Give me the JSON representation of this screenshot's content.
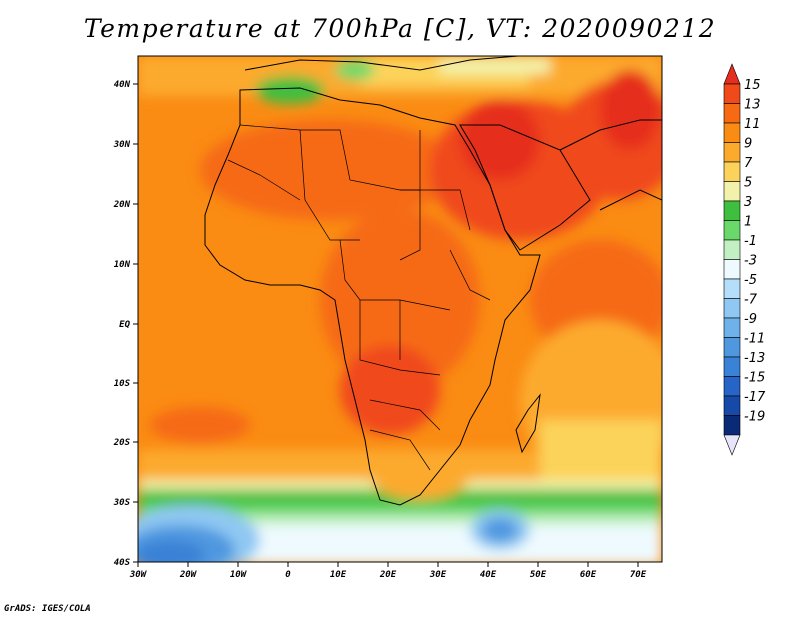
{
  "title": "Temperature at 700hPa [C], VT: 2020090212",
  "credit": "GrADS: IGES/COLA",
  "lat_labels": [
    "40N",
    "30N",
    "20N",
    "10N",
    "EQ",
    "10S",
    "20S",
    "30S",
    "40S"
  ],
  "lon_labels": [
    "30W",
    "20W",
    "10W",
    "0",
    "10E",
    "20E",
    "30E",
    "40E",
    "50E",
    "60E",
    "70E"
  ],
  "colorbar": {
    "labels": [
      "15",
      "13",
      "11",
      "9",
      "7",
      "5",
      "3",
      "1",
      "-1",
      "-3",
      "-5",
      "-7",
      "-9",
      "-11",
      "-13",
      "-15",
      "-17",
      "-19"
    ],
    "colors": [
      "#e62d1e",
      "#f04a1a",
      "#f66a14",
      "#fa8b13",
      "#fcaa2e",
      "#fcd35a",
      "#f2f2aa",
      "#3fbf3f",
      "#6ad96a",
      "#c2f0c2",
      "#eefaff",
      "#b4defa",
      "#8fc8f2",
      "#6fb2ea",
      "#4f98e0",
      "#3a82d6",
      "#2664c8",
      "#1649a8",
      "#0a2a78",
      "#e8e4fa"
    ]
  }
}
